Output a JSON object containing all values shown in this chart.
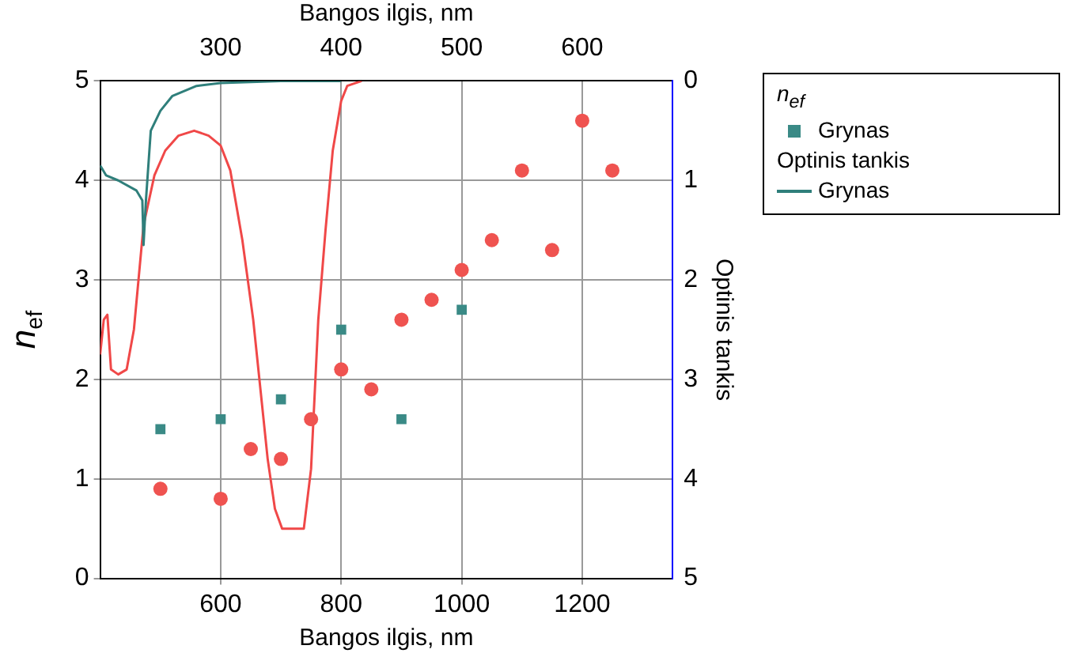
{
  "chart_data": {
    "type": "scatter",
    "xlabel": "Bangos ilgis, nm",
    "x2label": "Bangos ilgis, nm",
    "ylabel": "n$_{ef}$",
    "y2label": "Optinis tankis",
    "legend_title": "n$_{ef}$",
    "annotations": [
      "Optinis tankis"
    ],
    "legend": "right",
    "grid": true,
    "xlim": [
      400,
      1350
    ],
    "xticks": [
      600,
      800,
      1000,
      1200
    ],
    "x2lim": [
      200,
      675
    ],
    "x2ticks": [
      300,
      400,
      500,
      600
    ],
    "ylim": [
      0,
      5
    ],
    "yticks": [
      0,
      1,
      2,
      3,
      4,
      5
    ],
    "y2lim": [
      5,
      0
    ],
    "y2ticks": [
      0,
      1,
      2,
      3,
      4,
      5
    ],
    "series": [
      {
        "name": "Grynas",
        "type": "scatter",
        "marker": "square",
        "color": "#3a8a86",
        "x": [
          500,
          600,
          700,
          800,
          900,
          1000
        ],
        "values": [
          1.5,
          1.6,
          1.8,
          2.5,
          1.6,
          2.7
        ]
      },
      {
        "type": "scatter",
        "marker": "circle",
        "color": "#ef5350",
        "x": [
          500,
          600,
          650,
          700,
          750,
          800,
          850,
          900,
          950,
          1000,
          1050,
          1100,
          1150,
          1200,
          1250
        ],
        "values": [
          0.9,
          0.8,
          1.3,
          1.2,
          1.6,
          2.1,
          1.9,
          2.6,
          2.8,
          3.1,
          3.4,
          4.1,
          3.3,
          4.6,
          4.1
        ]
      },
      {
        "name": "Grynas",
        "type": "line",
        "axis": "y2",
        "marker": "none",
        "line_style": "solid",
        "color": "#2f7f7b",
        "x": [
          400,
          410,
          430,
          460,
          470,
          472,
          476,
          484,
          500,
          520,
          560,
          600,
          700,
          800
        ],
        "values": [
          0.85,
          0.95,
          1.0,
          1.1,
          1.2,
          1.65,
          1.2,
          0.5,
          0.3,
          0.15,
          0.05,
          0.02,
          0,
          0
        ]
      },
      {
        "type": "line",
        "axis": "y2",
        "marker": "none",
        "line_style": "solid",
        "color": "#f04848",
        "x": [
          400,
          406,
          412,
          418,
          430,
          444,
          456,
          472,
          490,
          508,
          530,
          556,
          580,
          600,
          616,
          636,
          654,
          678,
          690,
          702,
          738,
          750,
          762,
          774,
          786,
          800,
          810,
          834
        ],
        "values": [
          2.75,
          2.4,
          2.35,
          2.9,
          2.95,
          2.9,
          2.5,
          1.45,
          0.95,
          0.7,
          0.55,
          0.5,
          0.55,
          0.65,
          0.9,
          1.6,
          2.4,
          3.8,
          4.3,
          4.5,
          4.5,
          3.9,
          2.4,
          1.5,
          0.7,
          0.2,
          0.05,
          0
        ]
      }
    ]
  }
}
